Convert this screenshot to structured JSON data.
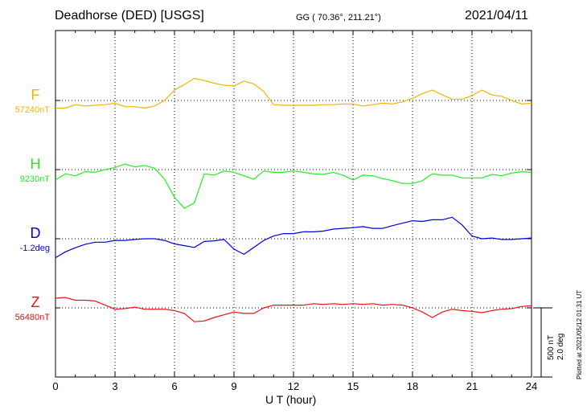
{
  "header": {
    "station": "Deadhorse (DED)  [USGS]",
    "coords": "GG ( 70.36°, 211.21°)",
    "date": "2021/04/11"
  },
  "scale": {
    "nt": "500 nT",
    "deg": "2.0 deg"
  },
  "footer": {
    "plotted": "Plotted at 2021/05/12 01:31  UT"
  },
  "chart_data": {
    "type": "line",
    "title": "Deadhorse (DED)  [USGS]",
    "xlabel": "U T (hour)",
    "xlim": [
      0,
      24
    ],
    "x_ticks": [
      0,
      3,
      6,
      9,
      12,
      15,
      18,
      21,
      24
    ],
    "grid": true,
    "series": [
      {
        "name": "F",
        "baseline_label": "57240nT",
        "color": "#f5b400",
        "x": [
          0,
          0.5,
          1,
          1.5,
          2,
          2.5,
          3,
          3.5,
          4,
          4.5,
          5,
          5.5,
          6,
          6.5,
          7,
          7.5,
          8,
          8.5,
          9,
          9.5,
          10,
          10.5,
          11,
          11.5,
          12,
          12.5,
          13,
          13.5,
          14,
          14.5,
          15,
          15.5,
          16,
          16.5,
          17,
          17.5,
          18,
          18.5,
          19,
          19.5,
          20,
          20.5,
          21,
          21.5,
          22,
          22.5,
          23,
          23.5,
          24
        ],
        "y": [
          -55,
          -55,
          -30,
          -40,
          -35,
          -30,
          -20,
          -45,
          -45,
          -55,
          -40,
          0,
          75,
          115,
          160,
          145,
          125,
          110,
          105,
          140,
          120,
          65,
          -30,
          -35,
          -35,
          -35,
          -35,
          -30,
          -30,
          -25,
          -25,
          -40,
          -30,
          -20,
          -25,
          -10,
          15,
          50,
          75,
          40,
          10,
          10,
          35,
          75,
          40,
          30,
          0,
          -25,
          -20
        ]
      },
      {
        "name": "H",
        "baseline_label": "9230nT",
        "color": "#22ee22",
        "x": [
          0,
          0.5,
          1,
          1.5,
          2,
          2.5,
          3,
          3.5,
          4,
          4.5,
          5,
          5.5,
          6,
          6.5,
          7,
          7.5,
          8,
          8.5,
          9,
          9.5,
          10,
          10.5,
          11,
          11.5,
          12,
          12.5,
          13,
          13.5,
          14,
          14.5,
          15,
          15.5,
          16,
          16.5,
          17,
          17.5,
          18,
          18.5,
          19,
          19.5,
          20,
          20.5,
          21,
          21.5,
          22,
          22.5,
          23,
          23.5,
          24
        ],
        "y": [
          -75,
          -30,
          -45,
          -15,
          -20,
          0,
          15,
          40,
          20,
          30,
          10,
          -70,
          -200,
          -280,
          -240,
          -30,
          -40,
          -10,
          -20,
          -45,
          -70,
          -10,
          -20,
          -20,
          -10,
          -20,
          -30,
          -35,
          -20,
          -40,
          -75,
          -40,
          -45,
          -65,
          -80,
          -100,
          -100,
          -80,
          -30,
          -40,
          -40,
          -60,
          -60,
          -60,
          -35,
          -45,
          -25,
          -15,
          -20
        ]
      },
      {
        "name": "D",
        "baseline_label": "-1.2deg",
        "color": "#0000dd",
        "x": [
          0,
          0.5,
          1,
          1.5,
          2,
          2.5,
          3,
          3.5,
          4,
          4.5,
          5,
          5.5,
          6,
          6.5,
          7,
          7.5,
          8,
          8.5,
          9,
          9.5,
          10,
          10.5,
          11,
          11.5,
          12,
          12.5,
          13,
          13.5,
          14,
          14.5,
          15,
          15.5,
          16,
          16.5,
          17,
          17.5,
          18,
          18.5,
          19,
          19.5,
          20,
          20.5,
          21,
          21.5,
          22,
          22.5,
          23,
          23.5,
          24
        ],
        "y": [
          -0.55,
          -0.38,
          -0.26,
          -0.16,
          -0.1,
          -0.1,
          -0.05,
          -0.05,
          -0.02,
          0.0,
          0.0,
          -0.05,
          -0.15,
          -0.2,
          -0.25,
          -0.08,
          -0.06,
          -0.02,
          -0.3,
          -0.45,
          -0.25,
          -0.05,
          0.08,
          0.15,
          0.15,
          0.2,
          0.2,
          0.22,
          0.28,
          0.3,
          0.32,
          0.35,
          0.3,
          0.3,
          0.38,
          0.45,
          0.52,
          0.5,
          0.55,
          0.55,
          0.62,
          0.4,
          0.08,
          0.0,
          0.02,
          -0.02,
          -0.02,
          0.0,
          0.02
        ]
      },
      {
        "name": "Z",
        "baseline_label": "56480nT",
        "color": "#ee1111",
        "x": [
          0,
          0.5,
          1,
          1.5,
          2,
          2.5,
          3,
          3.5,
          4,
          4.5,
          5,
          5.5,
          6,
          6.5,
          7,
          7.5,
          8,
          8.5,
          9,
          9.5,
          10,
          10.5,
          11,
          11.5,
          12,
          12.5,
          13,
          13.5,
          14,
          14.5,
          15,
          15.5,
          16,
          16.5,
          17,
          17.5,
          18,
          18.5,
          19,
          19.5,
          20,
          20.5,
          21,
          21.5,
          22,
          22.5,
          23,
          23.5,
          24
        ],
        "y": [
          70,
          75,
          55,
          55,
          50,
          20,
          -10,
          -5,
          5,
          -10,
          -10,
          -10,
          -20,
          -40,
          -100,
          -95,
          -70,
          -50,
          -30,
          -40,
          -40,
          0,
          20,
          20,
          20,
          20,
          30,
          25,
          30,
          25,
          30,
          25,
          30,
          20,
          25,
          20,
          0,
          -30,
          -70,
          -30,
          -10,
          -20,
          -25,
          -35,
          -20,
          -10,
          -5,
          10,
          15
        ]
      }
    ]
  }
}
